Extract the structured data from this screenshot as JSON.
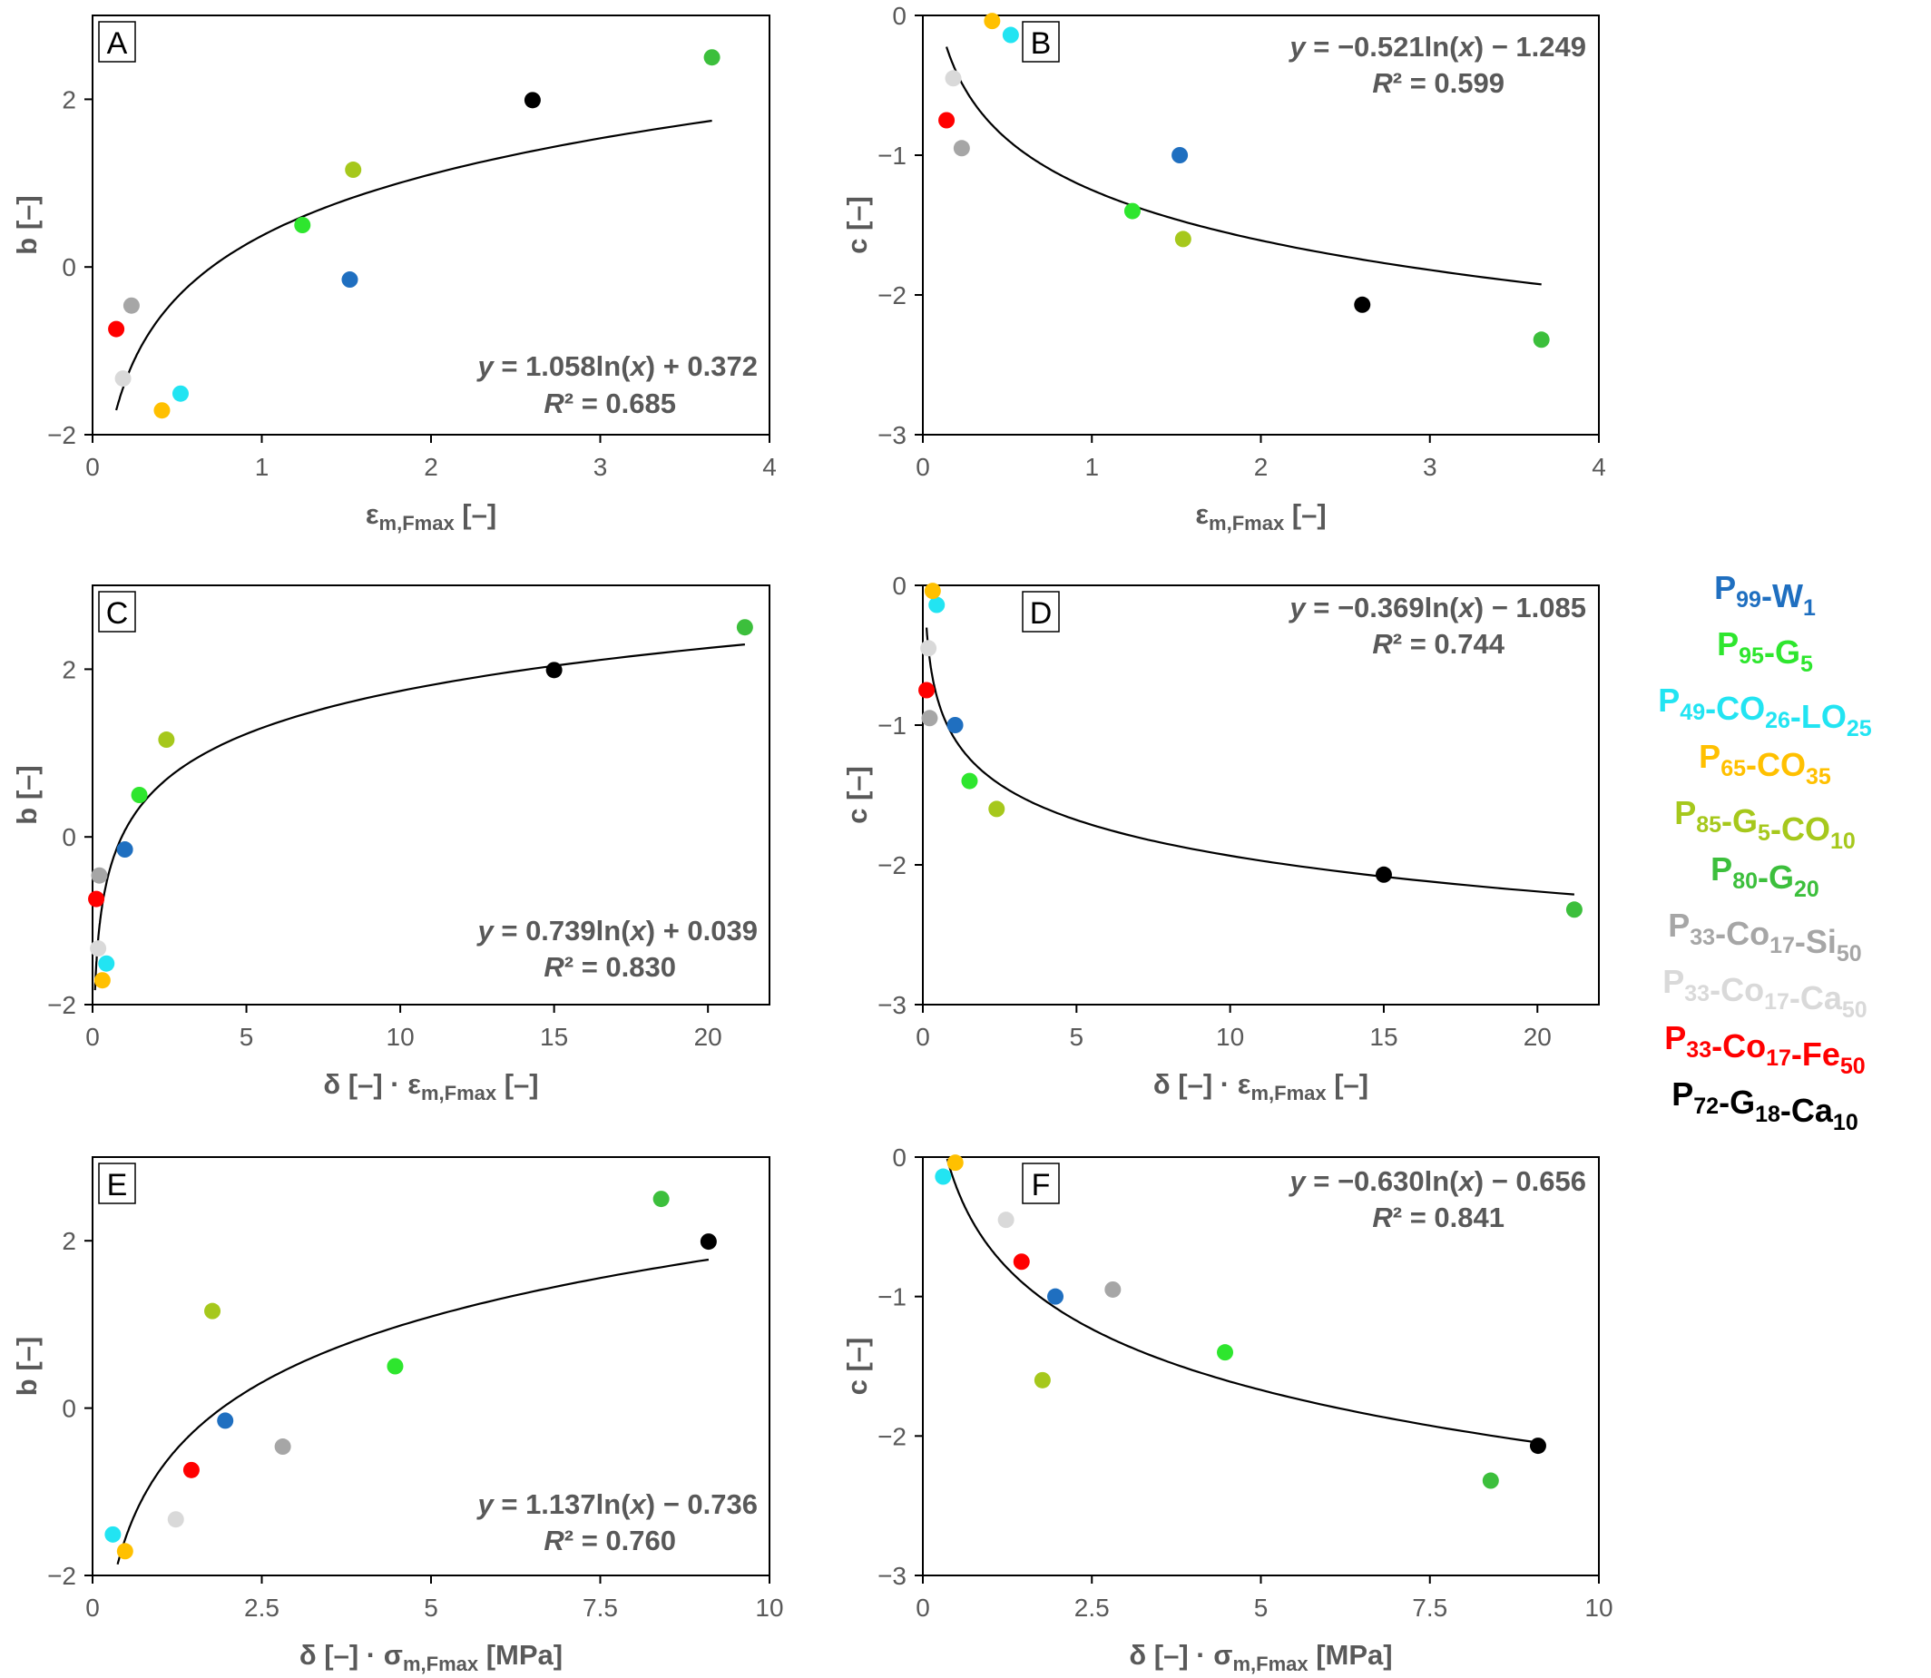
{
  "legend": [
    {
      "color": "#1f6fc0",
      "parts": [
        [
          "P",
          ""
        ],
        [
          "99",
          "sub"
        ],
        [
          "-W",
          ""
        ],
        [
          "1",
          "sub"
        ]
      ]
    },
    {
      "color": "#2ee62e",
      "parts": [
        [
          "P",
          ""
        ],
        [
          "95",
          "sub"
        ],
        [
          "-G",
          ""
        ],
        [
          "5",
          "sub"
        ]
      ]
    },
    {
      "color": "#22e4f2",
      "parts": [
        [
          "P",
          ""
        ],
        [
          "49",
          "sub"
        ],
        [
          "-CO",
          ""
        ],
        [
          "26",
          "sub"
        ],
        [
          "-LO",
          ""
        ],
        [
          "25",
          "sub"
        ]
      ]
    },
    {
      "color": "#ffc000",
      "parts": [
        [
          "P",
          ""
        ],
        [
          "65",
          "sub"
        ],
        [
          "-CO",
          ""
        ],
        [
          "35",
          "sub"
        ]
      ]
    },
    {
      "color": "#a6c81c",
      "parts": [
        [
          "P",
          ""
        ],
        [
          "85",
          "sub"
        ],
        [
          "-G",
          ""
        ],
        [
          "5",
          "sub"
        ],
        [
          "-CO",
          ""
        ],
        [
          "10",
          "sub"
        ]
      ]
    },
    {
      "color": "#3cbf3c",
      "parts": [
        [
          "P",
          ""
        ],
        [
          "80",
          "sub"
        ],
        [
          "-G",
          ""
        ],
        [
          "20",
          "sub"
        ]
      ]
    },
    {
      "color": "#a6a6a6",
      "parts": [
        [
          "P",
          ""
        ],
        [
          "33",
          "sub"
        ],
        [
          "-Co",
          ""
        ],
        [
          "17",
          "sub"
        ],
        [
          "-Si",
          ""
        ],
        [
          "50",
          "sub"
        ]
      ]
    },
    {
      "color": "#d9d9d9",
      "parts": [
        [
          "P",
          ""
        ],
        [
          "33",
          "sub"
        ],
        [
          "-Co",
          ""
        ],
        [
          "17",
          "sub"
        ],
        [
          "-Ca",
          ""
        ],
        [
          "50",
          "sub"
        ]
      ]
    },
    {
      "color": "#ff0000",
      "parts": [
        [
          "P",
          ""
        ],
        [
          "33",
          "sub"
        ],
        [
          "-Co",
          ""
        ],
        [
          "17",
          "sub"
        ],
        [
          "-Fe",
          ""
        ],
        [
          "50",
          "sub"
        ]
      ]
    },
    {
      "color": "#000000",
      "parts": [
        [
          "P",
          ""
        ],
        [
          "72",
          "sub"
        ],
        [
          "-G",
          ""
        ],
        [
          "18",
          "sub"
        ],
        [
          "-Ca",
          ""
        ],
        [
          "10",
          "sub"
        ]
      ]
    }
  ],
  "chart_data": [
    {
      "panel": "A",
      "type": "scatter",
      "xlabel": "εm,Fmax [–]",
      "ylabel": "b [–]",
      "xlim": [
        0,
        4
      ],
      "ylim": [
        -2,
        3
      ],
      "xticks": [
        "0",
        "1",
        "2",
        "3",
        "4"
      ],
      "yticks": [
        "−2",
        "0",
        "2"
      ],
      "fit": {
        "a": 1.058,
        "b": 0.372,
        "x_range": [
          0.14,
          3.66
        ]
      },
      "equation": {
        "formula_pre": "y",
        "formula_post": " = 1.058ln(x) + 0.372",
        "r2": "R² = 0.685"
      },
      "points": [
        {
          "series": "P99-W1",
          "x": 1.52,
          "y": -0.15,
          "color": "#1f6fc0"
        },
        {
          "series": "P95-G5",
          "x": 1.24,
          "y": 0.5,
          "color": "#2ee62e"
        },
        {
          "series": "P49-CO26-LO25",
          "x": 0.52,
          "y": -1.51,
          "color": "#22e4f2"
        },
        {
          "series": "P65-CO35",
          "x": 0.41,
          "y": -1.71,
          "color": "#ffc000"
        },
        {
          "series": "P85-G5-CO10",
          "x": 1.54,
          "y": 1.16,
          "color": "#a6c81c"
        },
        {
          "series": "P80-G20",
          "x": 3.66,
          "y": 2.5,
          "color": "#3cbf3c"
        },
        {
          "series": "P33-Co17-Si50",
          "x": 0.23,
          "y": -0.46,
          "color": "#a6a6a6"
        },
        {
          "series": "P33-Co17-Ca50",
          "x": 0.18,
          "y": -1.33,
          "color": "#d9d9d9"
        },
        {
          "series": "P33-Co17-Fe50",
          "x": 0.14,
          "y": -0.74,
          "color": "#ff0000"
        },
        {
          "series": "P72-G18-Ca10",
          "x": 2.6,
          "y": 1.99,
          "color": "#000000"
        }
      ]
    },
    {
      "panel": "B",
      "type": "scatter",
      "xlabel": "εm,Fmax [–]",
      "ylabel": "c [–]",
      "xlim": [
        0,
        4
      ],
      "ylim": [
        -3,
        0
      ],
      "xticks": [
        "0",
        "1",
        "2",
        "3",
        "4"
      ],
      "yticks": [
        "−3",
        "−2",
        "−1",
        "0"
      ],
      "fit": {
        "a": -0.521,
        "b": -1.249,
        "x_range": [
          0.14,
          3.66
        ]
      },
      "equation": {
        "formula_pre": "y",
        "formula_post": " = −0.521ln(x) − 1.249",
        "r2": "R² = 0.599"
      },
      "points": [
        {
          "series": "P99-W1",
          "x": 1.52,
          "y": -1.0,
          "color": "#1f6fc0"
        },
        {
          "series": "P95-G5",
          "x": 1.24,
          "y": -1.4,
          "color": "#2ee62e"
        },
        {
          "series": "P49-CO26-LO25",
          "x": 0.52,
          "y": -0.14,
          "color": "#22e4f2"
        },
        {
          "series": "P65-CO35",
          "x": 0.41,
          "y": -0.04,
          "color": "#ffc000"
        },
        {
          "series": "P85-G5-CO10",
          "x": 1.54,
          "y": -1.6,
          "color": "#a6c81c"
        },
        {
          "series": "P80-G20",
          "x": 3.66,
          "y": -2.32,
          "color": "#3cbf3c"
        },
        {
          "series": "P33-Co17-Si50",
          "x": 0.23,
          "y": -0.95,
          "color": "#a6a6a6"
        },
        {
          "series": "P33-Co17-Ca50",
          "x": 0.18,
          "y": -0.45,
          "color": "#d9d9d9"
        },
        {
          "series": "P33-Co17-Fe50",
          "x": 0.14,
          "y": -0.75,
          "color": "#ff0000"
        },
        {
          "series": "P72-G18-Ca10",
          "x": 2.6,
          "y": -2.07,
          "color": "#000000"
        }
      ]
    },
    {
      "panel": "C",
      "type": "scatter",
      "xlabel": "δ [–] · εm,Fmax [–]",
      "ylabel": "b [–]",
      "xlim": [
        0,
        22
      ],
      "ylim": [
        -2,
        3
      ],
      "xticks": [
        "0",
        "5",
        "10",
        "15",
        "20"
      ],
      "yticks": [
        "−2",
        "0",
        "2"
      ],
      "fit": {
        "a": 0.739,
        "b": 0.039,
        "x_range": [
          0.08,
          21.2
        ]
      },
      "equation": {
        "formula_pre": "y",
        "formula_post": " = 0.739ln(x) + 0.039",
        "r2": "R² = 0.830"
      },
      "points": [
        {
          "series": "P99-W1",
          "x": 1.05,
          "y": -0.15,
          "color": "#1f6fc0"
        },
        {
          "series": "P95-G5",
          "x": 1.52,
          "y": 0.5,
          "color": "#2ee62e"
        },
        {
          "series": "P49-CO26-LO25",
          "x": 0.45,
          "y": -1.51,
          "color": "#22e4f2"
        },
        {
          "series": "P65-CO35",
          "x": 0.32,
          "y": -1.71,
          "color": "#ffc000"
        },
        {
          "series": "P85-G5-CO10",
          "x": 2.4,
          "y": 1.16,
          "color": "#a6c81c"
        },
        {
          "series": "P80-G20",
          "x": 21.2,
          "y": 2.5,
          "color": "#3cbf3c"
        },
        {
          "series": "P33-Co17-Si50",
          "x": 0.22,
          "y": -0.46,
          "color": "#a6a6a6"
        },
        {
          "series": "P33-Co17-Ca50",
          "x": 0.18,
          "y": -1.33,
          "color": "#d9d9d9"
        },
        {
          "series": "P33-Co17-Fe50",
          "x": 0.12,
          "y": -0.74,
          "color": "#ff0000"
        },
        {
          "series": "P72-G18-Ca10",
          "x": 15.0,
          "y": 1.99,
          "color": "#000000"
        }
      ]
    },
    {
      "panel": "D",
      "type": "scatter",
      "xlabel": "δ [–] · εm,Fmax [–]",
      "ylabel": "c [–]",
      "xlim": [
        0,
        22
      ],
      "ylim": [
        -3,
        0
      ],
      "xticks": [
        "0",
        "5",
        "10",
        "15",
        "20"
      ],
      "yticks": [
        "−3",
        "−2",
        "−1",
        "0"
      ],
      "fit": {
        "a": -0.369,
        "b": -1.085,
        "x_range": [
          0.12,
          21.2
        ]
      },
      "equation": {
        "formula_pre": "y",
        "formula_post": " = −0.369ln(x) − 1.085",
        "r2": "R² = 0.744"
      },
      "points": [
        {
          "series": "P99-W1",
          "x": 1.05,
          "y": -1.0,
          "color": "#1f6fc0"
        },
        {
          "series": "P95-G5",
          "x": 1.52,
          "y": -1.4,
          "color": "#2ee62e"
        },
        {
          "series": "P49-CO26-LO25",
          "x": 0.45,
          "y": -0.14,
          "color": "#22e4f2"
        },
        {
          "series": "P65-CO35",
          "x": 0.32,
          "y": -0.04,
          "color": "#ffc000"
        },
        {
          "series": "P85-G5-CO10",
          "x": 2.4,
          "y": -1.6,
          "color": "#a6c81c"
        },
        {
          "series": "P80-G20",
          "x": 21.2,
          "y": -2.32,
          "color": "#3cbf3c"
        },
        {
          "series": "P33-Co17-Si50",
          "x": 0.22,
          "y": -0.95,
          "color": "#a6a6a6"
        },
        {
          "series": "P33-Co17-Ca50",
          "x": 0.18,
          "y": -0.45,
          "color": "#d9d9d9"
        },
        {
          "series": "P33-Co17-Fe50",
          "x": 0.12,
          "y": -0.75,
          "color": "#ff0000"
        },
        {
          "series": "P72-G18-Ca10",
          "x": 15.0,
          "y": -2.07,
          "color": "#000000"
        }
      ]
    },
    {
      "panel": "E",
      "type": "scatter",
      "xlabel": "δ [–] · σm,Fmax [MPa]",
      "ylabel": "b [–]",
      "xlim": [
        0,
        10
      ],
      "ylim": [
        -2,
        3
      ],
      "xticks": [
        "0",
        "2.5",
        "5",
        "7.5",
        "10"
      ],
      "yticks": [
        "−2",
        "0",
        "2"
      ],
      "fit": {
        "a": 1.137,
        "b": -0.736,
        "x_range": [
          0.37,
          9.1
        ]
      },
      "equation": {
        "formula_pre": "y",
        "formula_post": " = 1.137ln(x) − 0.736",
        "r2": "R² = 0.760"
      },
      "points": [
        {
          "series": "P99-W1",
          "x": 1.96,
          "y": -0.15,
          "color": "#1f6fc0"
        },
        {
          "series": "P95-G5",
          "x": 4.47,
          "y": 0.5,
          "color": "#2ee62e"
        },
        {
          "series": "P49-CO26-LO25",
          "x": 0.3,
          "y": -1.51,
          "color": "#22e4f2"
        },
        {
          "series": "P65-CO35",
          "x": 0.48,
          "y": -1.71,
          "color": "#ffc000"
        },
        {
          "series": "P85-G5-CO10",
          "x": 1.77,
          "y": 1.16,
          "color": "#a6c81c"
        },
        {
          "series": "P80-G20",
          "x": 8.4,
          "y": 2.5,
          "color": "#3cbf3c"
        },
        {
          "series": "P33-Co17-Si50",
          "x": 2.81,
          "y": -0.46,
          "color": "#a6a6a6"
        },
        {
          "series": "P33-Co17-Ca50",
          "x": 1.23,
          "y": -1.33,
          "color": "#d9d9d9"
        },
        {
          "series": "P33-Co17-Fe50",
          "x": 1.46,
          "y": -0.74,
          "color": "#ff0000"
        },
        {
          "series": "P72-G18-Ca10",
          "x": 9.1,
          "y": 1.99,
          "color": "#000000"
        }
      ]
    },
    {
      "panel": "F",
      "type": "scatter",
      "xlabel": "δ [–] · σm,Fmax [MPa]",
      "ylabel": "c [–]",
      "xlim": [
        0,
        10
      ],
      "ylim": [
        -3,
        0
      ],
      "xticks": [
        "0",
        "2.5",
        "5",
        "7.5",
        "10"
      ],
      "yticks": [
        "−3",
        "−2",
        "−1",
        "0"
      ],
      "fit": {
        "a": -0.63,
        "b": -0.656,
        "x_range": [
          0.36,
          9.1
        ]
      },
      "equation": {
        "formula_pre": "y",
        "formula_post": " = −0.630ln(x) − 0.656",
        "r2": "R² = 0.841"
      },
      "points": [
        {
          "series": "P99-W1",
          "x": 1.96,
          "y": -1.0,
          "color": "#1f6fc0"
        },
        {
          "series": "P95-G5",
          "x": 4.47,
          "y": -1.4,
          "color": "#2ee62e"
        },
        {
          "series": "P49-CO26-LO25",
          "x": 0.3,
          "y": -0.14,
          "color": "#22e4f2"
        },
        {
          "series": "P65-CO35",
          "x": 0.48,
          "y": -0.04,
          "color": "#ffc000"
        },
        {
          "series": "P85-G5-CO10",
          "x": 1.77,
          "y": -1.6,
          "color": "#a6c81c"
        },
        {
          "series": "P80-G20",
          "x": 8.4,
          "y": -2.32,
          "color": "#3cbf3c"
        },
        {
          "series": "P33-Co17-Si50",
          "x": 2.81,
          "y": -0.95,
          "color": "#a6a6a6"
        },
        {
          "series": "P33-Co17-Ca50",
          "x": 1.23,
          "y": -0.45,
          "color": "#d9d9d9"
        },
        {
          "series": "P33-Co17-Fe50",
          "x": 1.46,
          "y": -0.75,
          "color": "#ff0000"
        },
        {
          "series": "P72-G18-Ca10",
          "x": 9.1,
          "y": -2.07,
          "color": "#000000"
        }
      ]
    }
  ]
}
